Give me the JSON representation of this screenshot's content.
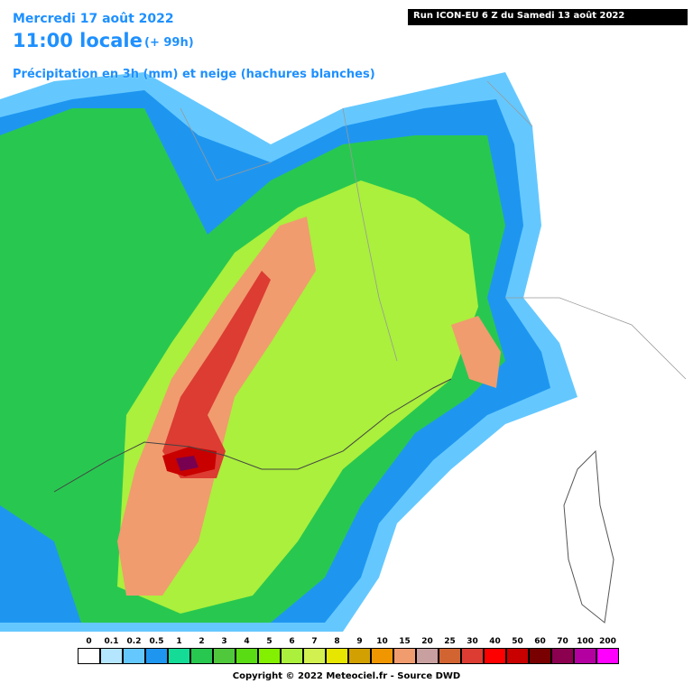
{
  "header": {
    "date": "Mercredi 17 août 2022",
    "hour": "11:00 locale",
    "lead": "(+ 99h)",
    "parameter": "Précipitation en 3h (mm) et neige (hachures blanches)",
    "run": "Run ICON-EU 6 Z du Samedi 13 août 2022"
  },
  "legend": [
    {
      "label": "0",
      "color": "#ffffff"
    },
    {
      "label": "0.1",
      "color": "#b4e6ff"
    },
    {
      "label": "0.2",
      "color": "#64c8ff"
    },
    {
      "label": "0.5",
      "color": "#1e96f0"
    },
    {
      "label": "1",
      "color": "#14dc96"
    },
    {
      "label": "2",
      "color": "#28c850"
    },
    {
      "label": "3",
      "color": "#50c83c"
    },
    {
      "label": "4",
      "color": "#5adc14"
    },
    {
      "label": "5",
      "color": "#82f000"
    },
    {
      "label": "6",
      "color": "#aaf03c"
    },
    {
      "label": "7",
      "color": "#d2f050"
    },
    {
      "label": "8",
      "color": "#e6e600"
    },
    {
      "label": "9",
      "color": "#d2a000"
    },
    {
      "label": "10",
      "color": "#f09600"
    },
    {
      "label": "15",
      "color": "#f09c6e"
    },
    {
      "label": "20",
      "color": "#c8a0a0"
    },
    {
      "label": "25",
      "color": "#d26432"
    },
    {
      "label": "30",
      "color": "#dc3c32"
    },
    {
      "label": "40",
      "color": "#ff0000"
    },
    {
      "label": "50",
      "color": "#c80000"
    },
    {
      "label": "60",
      "color": "#780000"
    },
    {
      "label": "70",
      "color": "#8c0050"
    },
    {
      "label": "100",
      "color": "#b400a0"
    },
    {
      "label": "200",
      "color": "#ff00ff"
    }
  ],
  "copyright": "Copyright © 2022 Meteociel.fr - Source DWD"
}
